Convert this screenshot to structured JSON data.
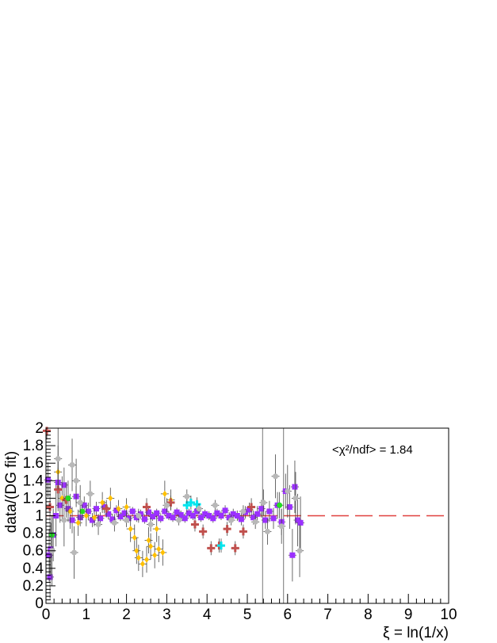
{
  "chart_data": {
    "type": "scatter",
    "title": "",
    "xlabel": "ξ = ln(1/x)",
    "ylabel": "data/(DG fit)",
    "xlim": [
      0,
      10
    ],
    "ylim": [
      0,
      2
    ],
    "x_ticks": [
      0,
      1,
      2,
      3,
      4,
      5,
      6,
      7,
      8,
      9,
      10
    ],
    "y_ticks": [
      0,
      0.2,
      0.4,
      0.6,
      0.8,
      1,
      1.2,
      1.4,
      1.6,
      1.8,
      2
    ],
    "x_tick_labels": [
      "0",
      "1",
      "2",
      "3",
      "4",
      "5",
      "6",
      "7",
      "8",
      "9",
      "10"
    ],
    "y_tick_labels": [
      "0",
      "0.2",
      "0.4",
      "0.6",
      "0.8",
      "1",
      "1.2",
      "1.4",
      "1.6",
      "1.8",
      "2"
    ],
    "annotation": "<χ²/ndf> = 1.84",
    "reference_line": {
      "y": 1,
      "style": "dashed",
      "color": "#e0403f"
    },
    "vertical_lines": [
      5.38,
      5.9
    ],
    "grid": false,
    "legend": "none",
    "series": [
      {
        "color": "#9b30ff",
        "marker": "square",
        "points": [
          {
            "x": 0.05,
            "y": 1.41,
            "e": 0.2
          },
          {
            "x": 0.08,
            "y": 0.55,
            "e": 0.3
          },
          {
            "x": 0.1,
            "y": 0.3,
            "e": 0.25
          },
          {
            "x": 0.12,
            "y": 0.62,
            "e": 0.3
          },
          {
            "x": 0.18,
            "y": 0.78,
            "e": 0.3
          },
          {
            "x": 0.25,
            "y": 1.0,
            "e": 0.35
          },
          {
            "x": 0.3,
            "y": 1.38,
            "e": 0.25
          },
          {
            "x": 0.35,
            "y": 1.12,
            "e": 0.2
          },
          {
            "x": 0.45,
            "y": 1.35,
            "e": 0.2
          },
          {
            "x": 0.55,
            "y": 1.08,
            "e": 0.15
          },
          {
            "x": 0.65,
            "y": 0.95,
            "e": 0.15
          },
          {
            "x": 0.75,
            "y": 1.22,
            "e": 0.12
          },
          {
            "x": 0.85,
            "y": 0.98,
            "e": 0.1
          },
          {
            "x": 0.95,
            "y": 1.12,
            "e": 0.1
          },
          {
            "x": 1.05,
            "y": 1.05,
            "e": 0.1
          },
          {
            "x": 1.15,
            "y": 0.95,
            "e": 0.08
          },
          {
            "x": 1.25,
            "y": 1.08,
            "e": 0.08
          },
          {
            "x": 1.35,
            "y": 0.97,
            "e": 0.07
          },
          {
            "x": 1.45,
            "y": 1.1,
            "e": 0.07
          },
          {
            "x": 1.55,
            "y": 1.02,
            "e": 0.06
          },
          {
            "x": 1.65,
            "y": 0.96,
            "e": 0.06
          },
          {
            "x": 1.75,
            "y": 1.06,
            "e": 0.06
          },
          {
            "x": 1.85,
            "y": 0.99,
            "e": 0.05
          },
          {
            "x": 1.95,
            "y": 1.03,
            "e": 0.05
          },
          {
            "x": 2.05,
            "y": 0.97,
            "e": 0.05
          },
          {
            "x": 2.15,
            "y": 1.05,
            "e": 0.05
          },
          {
            "x": 2.25,
            "y": 0.98,
            "e": 0.05
          },
          {
            "x": 2.35,
            "y": 1.02,
            "e": 0.05
          },
          {
            "x": 2.45,
            "y": 0.96,
            "e": 0.05
          },
          {
            "x": 2.55,
            "y": 1.04,
            "e": 0.05
          },
          {
            "x": 2.65,
            "y": 0.99,
            "e": 0.05
          },
          {
            "x": 2.75,
            "y": 1.03,
            "e": 0.05
          },
          {
            "x": 2.85,
            "y": 0.97,
            "e": 0.05
          },
          {
            "x": 2.95,
            "y": 1.05,
            "e": 0.05
          },
          {
            "x": 3.05,
            "y": 1.0,
            "e": 0.05
          },
          {
            "x": 3.15,
            "y": 0.98,
            "e": 0.05
          },
          {
            "x": 3.25,
            "y": 1.04,
            "e": 0.05
          },
          {
            "x": 3.35,
            "y": 1.01,
            "e": 0.05
          },
          {
            "x": 3.45,
            "y": 0.97,
            "e": 0.05
          },
          {
            "x": 3.55,
            "y": 1.03,
            "e": 0.05
          },
          {
            "x": 3.65,
            "y": 1.0,
            "e": 0.05
          },
          {
            "x": 3.75,
            "y": 1.05,
            "e": 0.05
          },
          {
            "x": 3.85,
            "y": 0.98,
            "e": 0.05
          },
          {
            "x": 3.95,
            "y": 1.02,
            "e": 0.05
          },
          {
            "x": 4.05,
            "y": 1.0,
            "e": 0.05
          },
          {
            "x": 4.15,
            "y": 0.97,
            "e": 0.05
          },
          {
            "x": 4.25,
            "y": 1.03,
            "e": 0.05
          },
          {
            "x": 4.35,
            "y": 1.0,
            "e": 0.05
          },
          {
            "x": 4.45,
            "y": 1.06,
            "e": 0.06
          },
          {
            "x": 4.55,
            "y": 0.98,
            "e": 0.06
          },
          {
            "x": 4.65,
            "y": 1.02,
            "e": 0.06
          },
          {
            "x": 4.75,
            "y": 1.0,
            "e": 0.06
          },
          {
            "x": 4.85,
            "y": 0.96,
            "e": 0.07
          },
          {
            "x": 4.95,
            "y": 1.04,
            "e": 0.07
          },
          {
            "x": 5.05,
            "y": 1.07,
            "e": 0.08
          },
          {
            "x": 5.15,
            "y": 0.98,
            "e": 0.08
          },
          {
            "x": 5.25,
            "y": 1.02,
            "e": 0.09
          },
          {
            "x": 5.35,
            "y": 1.08,
            "e": 0.1
          },
          {
            "x": 5.45,
            "y": 0.95,
            "e": 0.1
          },
          {
            "x": 5.55,
            "y": 1.05,
            "e": 0.12
          },
          {
            "x": 5.65,
            "y": 0.97,
            "e": 0.12
          },
          {
            "x": 5.75,
            "y": 1.12,
            "e": 0.15
          },
          {
            "x": 5.85,
            "y": 0.93,
            "e": 0.15
          },
          {
            "x": 5.95,
            "y": 1.28,
            "e": 0.2
          },
          {
            "x": 6.05,
            "y": 1.1,
            "e": 0.25
          },
          {
            "x": 6.12,
            "y": 0.55,
            "e": 0.3
          },
          {
            "x": 6.18,
            "y": 1.33,
            "e": 0.3
          },
          {
            "x": 6.25,
            "y": 0.95,
            "e": 0.3
          },
          {
            "x": 6.32,
            "y": 0.92,
            "e": 0.3
          }
        ]
      },
      {
        "color": "#ffc000",
        "marker": "diamond",
        "points": [
          {
            "x": 0.3,
            "y": 1.5,
            "e": 0.3
          },
          {
            "x": 0.4,
            "y": 1.2,
            "e": 0.25
          },
          {
            "x": 0.6,
            "y": 1.05,
            "e": 0.2
          },
          {
            "x": 0.8,
            "y": 0.92,
            "e": 0.15
          },
          {
            "x": 1.0,
            "y": 1.0,
            "e": 0.12
          },
          {
            "x": 1.2,
            "y": 0.98,
            "e": 0.1
          },
          {
            "x": 1.4,
            "y": 1.15,
            "e": 0.12
          },
          {
            "x": 1.6,
            "y": 1.2,
            "e": 0.12
          },
          {
            "x": 1.8,
            "y": 1.08,
            "e": 0.1
          },
          {
            "x": 2.0,
            "y": 1.1,
            "e": 0.1
          },
          {
            "x": 2.1,
            "y": 0.85,
            "e": 0.15
          },
          {
            "x": 2.2,
            "y": 0.75,
            "e": 0.15
          },
          {
            "x": 2.25,
            "y": 0.6,
            "e": 0.15
          },
          {
            "x": 2.3,
            "y": 0.52,
            "e": 0.15
          },
          {
            "x": 2.4,
            "y": 0.45,
            "e": 0.15
          },
          {
            "x": 2.5,
            "y": 0.5,
            "e": 0.15
          },
          {
            "x": 2.55,
            "y": 0.72,
            "e": 0.15
          },
          {
            "x": 2.6,
            "y": 0.65,
            "e": 0.15
          },
          {
            "x": 2.7,
            "y": 0.55,
            "e": 0.15
          },
          {
            "x": 2.75,
            "y": 0.85,
            "e": 0.15
          },
          {
            "x": 2.8,
            "y": 0.62,
            "e": 0.15
          },
          {
            "x": 2.9,
            "y": 0.58,
            "e": 0.15
          },
          {
            "x": 2.95,
            "y": 1.25,
            "e": 0.15
          },
          {
            "x": 3.1,
            "y": 1.18,
            "e": 0.12
          }
        ]
      },
      {
        "color": "#c0504d",
        "marker": "cross",
        "points": [
          {
            "x": 0.02,
            "y": 1.97,
            "e": 0.1
          },
          {
            "x": 0.1,
            "y": 1.1,
            "e": 0.3
          },
          {
            "x": 0.3,
            "y": 1.3,
            "e": 0.25
          },
          {
            "x": 0.5,
            "y": 1.18,
            "e": 0.2
          },
          {
            "x": 1.5,
            "y": 1.08,
            "e": 0.1
          },
          {
            "x": 2.5,
            "y": 1.1,
            "e": 0.1
          },
          {
            "x": 3.1,
            "y": 1.15,
            "e": 0.08
          },
          {
            "x": 3.7,
            "y": 0.9,
            "e": 0.08
          },
          {
            "x": 3.9,
            "y": 0.82,
            "e": 0.08
          },
          {
            "x": 4.1,
            "y": 0.63,
            "e": 0.08
          },
          {
            "x": 4.3,
            "y": 0.66,
            "e": 0.08
          },
          {
            "x": 4.5,
            "y": 0.85,
            "e": 0.08
          },
          {
            "x": 4.7,
            "y": 0.63,
            "e": 0.08
          },
          {
            "x": 4.9,
            "y": 0.82,
            "e": 0.08
          },
          {
            "x": 5.1,
            "y": 1.1,
            "e": 0.1
          }
        ]
      },
      {
        "color": "#00e5ee",
        "marker": "cross",
        "points": [
          {
            "x": 3.5,
            "y": 1.12,
            "e": 0.08
          },
          {
            "x": 3.6,
            "y": 1.15,
            "e": 0.08
          },
          {
            "x": 3.75,
            "y": 1.13,
            "e": 0.08
          },
          {
            "x": 4.35,
            "y": 0.66,
            "e": 0.08
          }
        ]
      },
      {
        "color": "#22dd22",
        "marker": "circle",
        "points": [
          {
            "x": 0.15,
            "y": 0.78,
            "e": 0.2
          },
          {
            "x": 0.55,
            "y": 1.2,
            "e": 0.2
          },
          {
            "x": 0.9,
            "y": 1.05,
            "e": 0.1
          },
          {
            "x": 5.8,
            "y": 1.12,
            "e": 0.15
          }
        ]
      },
      {
        "color": "#b8b8b8",
        "marker": "circle",
        "points": [
          {
            "x": 0.15,
            "y": 0.6,
            "e": 0.4
          },
          {
            "x": 0.3,
            "y": 1.65,
            "e": 0.35
          },
          {
            "x": 0.45,
            "y": 0.95,
            "e": 0.3
          },
          {
            "x": 0.65,
            "y": 1.58,
            "e": 0.3
          },
          {
            "x": 0.75,
            "y": 1.4,
            "e": 0.25
          },
          {
            "x": 0.7,
            "y": 0.58,
            "e": 0.3
          },
          {
            "x": 0.85,
            "y": 1.15,
            "e": 0.2
          },
          {
            "x": 1.1,
            "y": 1.25,
            "e": 0.15
          },
          {
            "x": 1.3,
            "y": 0.9,
            "e": 0.12
          },
          {
            "x": 1.7,
            "y": 0.92,
            "e": 0.1
          },
          {
            "x": 2.0,
            "y": 0.95,
            "e": 0.08
          },
          {
            "x": 2.3,
            "y": 1.0,
            "e": 0.08
          },
          {
            "x": 2.6,
            "y": 0.9,
            "e": 0.08
          },
          {
            "x": 3.0,
            "y": 1.12,
            "e": 0.08
          },
          {
            "x": 3.3,
            "y": 0.95,
            "e": 0.06
          },
          {
            "x": 3.5,
            "y": 1.22,
            "e": 0.08
          },
          {
            "x": 3.8,
            "y": 1.08,
            "e": 0.06
          },
          {
            "x": 4.2,
            "y": 1.12,
            "e": 0.06
          },
          {
            "x": 4.6,
            "y": 0.95,
            "e": 0.06
          },
          {
            "x": 4.9,
            "y": 1.05,
            "e": 0.07
          },
          {
            "x": 5.2,
            "y": 0.93,
            "e": 0.08
          },
          {
            "x": 5.4,
            "y": 1.15,
            "e": 0.15
          },
          {
            "x": 5.5,
            "y": 0.82,
            "e": 0.15
          },
          {
            "x": 5.7,
            "y": 1.45,
            "e": 0.25
          },
          {
            "x": 5.85,
            "y": 0.88,
            "e": 0.2
          },
          {
            "x": 6.0,
            "y": 1.28,
            "e": 0.3
          },
          {
            "x": 6.2,
            "y": 1.2,
            "e": 0.3
          },
          {
            "x": 6.3,
            "y": 0.6,
            "e": 0.3
          }
        ]
      }
    ]
  }
}
